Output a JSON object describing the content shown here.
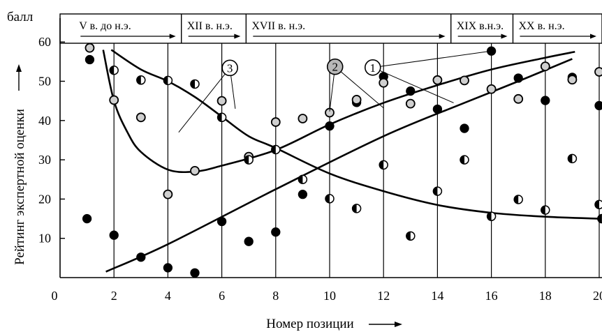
{
  "chart_data": {
    "type": "scatter",
    "ylabel": "Рейтинг экспертной оценки",
    "xlabel": "Номер позиции",
    "y_unit": "балл",
    "xlim": [
      0,
      20
    ],
    "ylim": [
      0,
      60
    ],
    "x_ticks": [
      0,
      2,
      4,
      6,
      8,
      10,
      12,
      14,
      16,
      18,
      20
    ],
    "y_ticks": [
      10,
      20,
      30,
      40,
      50,
      60
    ],
    "grid": "vertical",
    "periods": [
      {
        "label": "V в. до н.э.",
        "x_start": 0.5,
        "x_end": 4.5
      },
      {
        "label": "XII в. н.э.",
        "x_start": 4.5,
        "x_end": 6.9
      },
      {
        "label": "XVII в. н.э.",
        "x_start": 6.9,
        "x_end": 14.5
      },
      {
        "label": "XIX в.н.э.",
        "x_start": 14.5,
        "x_end": 16.8
      },
      {
        "label": "XX в. н.э.",
        "x_start": 16.8,
        "x_end": 20.5
      }
    ],
    "series": [
      {
        "id": "1",
        "marker": "filled",
        "points": [
          [
            1,
            15
          ],
          [
            2,
            10.8
          ],
          [
            3,
            5.2
          ],
          [
            4,
            2.5
          ],
          [
            5,
            1.2
          ],
          [
            6,
            14.3
          ],
          [
            7,
            9.2
          ],
          [
            8,
            11.6
          ],
          [
            9,
            21.2
          ],
          [
            10,
            38.6
          ],
          [
            11,
            44.6
          ],
          [
            12,
            51.2
          ],
          [
            13,
            47.5
          ],
          [
            14,
            42.9
          ],
          [
            15,
            38
          ],
          [
            16,
            57.7
          ],
          [
            17,
            50.8
          ],
          [
            18,
            45.1
          ],
          [
            19,
            51
          ],
          [
            20,
            43.8
          ],
          [
            1.1,
            55.5
          ]
        ]
      },
      {
        "id": "2",
        "marker": "open",
        "points": [
          [
            1.1,
            58.5
          ],
          [
            2,
            45.2
          ],
          [
            3,
            40.8
          ],
          [
            4,
            21.2
          ],
          [
            5,
            27.2
          ],
          [
            6,
            45
          ],
          [
            7,
            30.8
          ],
          [
            8,
            39.6
          ],
          [
            9,
            40.5
          ],
          [
            10,
            42
          ],
          [
            11,
            45.3
          ],
          [
            12,
            49.6
          ],
          [
            13,
            44.3
          ],
          [
            14,
            50.3
          ],
          [
            15,
            50.2
          ],
          [
            16,
            48
          ],
          [
            17,
            45.5
          ],
          [
            18,
            53.8
          ],
          [
            19,
            50.4
          ],
          [
            20,
            52.4
          ]
        ]
      },
      {
        "id": "3",
        "marker": "half",
        "points": [
          [
            2,
            52.8
          ],
          [
            3,
            50.3
          ],
          [
            4,
            50.2
          ],
          [
            5,
            49.3
          ],
          [
            6,
            40.8
          ],
          [
            7,
            30
          ],
          [
            8,
            32.6
          ],
          [
            9,
            25
          ],
          [
            10,
            20.1
          ],
          [
            11,
            17.6
          ],
          [
            12,
            28.7
          ],
          [
            13,
            10.6
          ],
          [
            14,
            22
          ],
          [
            15,
            30
          ],
          [
            16,
            15.6
          ],
          [
            17,
            19.9
          ],
          [
            18,
            17.2
          ],
          [
            19,
            30.3
          ],
          [
            20,
            18.6
          ],
          [
            20.1,
            15
          ]
        ]
      }
    ],
    "trend_lines": [
      {
        "id": "1",
        "points": [
          [
            1.7,
            1.5
          ],
          [
            4,
            8.5
          ],
          [
            8,
            22.5
          ],
          [
            12,
            36
          ],
          [
            15,
            44.5
          ],
          [
            17,
            50
          ],
          [
            19,
            55.7
          ]
        ]
      },
      {
        "id": "2",
        "points": [
          [
            1.6,
            58
          ],
          [
            2,
            45
          ],
          [
            2.5,
            37
          ],
          [
            3,
            32
          ],
          [
            4,
            27.5
          ],
          [
            5,
            27
          ],
          [
            6,
            28.5
          ],
          [
            8,
            32.5
          ],
          [
            10,
            39
          ],
          [
            12,
            44.5
          ],
          [
            14,
            49
          ],
          [
            16,
            53
          ],
          [
            18,
            56
          ],
          [
            19.1,
            57.5
          ]
        ]
      },
      {
        "id": "3",
        "points": [
          [
            1.9,
            58
          ],
          [
            3,
            53
          ],
          [
            4,
            50
          ],
          [
            5,
            46
          ],
          [
            6,
            41
          ],
          [
            7,
            36
          ],
          [
            8,
            33
          ],
          [
            10,
            26.5
          ],
          [
            12,
            22
          ],
          [
            14,
            18.5
          ],
          [
            16,
            16.5
          ],
          [
            18,
            15.5
          ],
          [
            20,
            15
          ]
        ]
      }
    ],
    "annotations": [
      {
        "label": "1",
        "x": 11.6,
        "y": 53.5,
        "filled": false,
        "points_to": [
          [
            16,
            57.7
          ],
          [
            14.6,
            44.5
          ]
        ]
      },
      {
        "label": "2",
        "x": 10.2,
        "y": 53.7,
        "filled": true,
        "points_to": [
          [
            10,
            42.3
          ],
          [
            12,
            43.2
          ]
        ]
      },
      {
        "label": "3",
        "x": 6.3,
        "y": 53.4,
        "filled": false,
        "points_to": [
          [
            4.4,
            37
          ],
          [
            6.5,
            43
          ]
        ]
      }
    ]
  }
}
